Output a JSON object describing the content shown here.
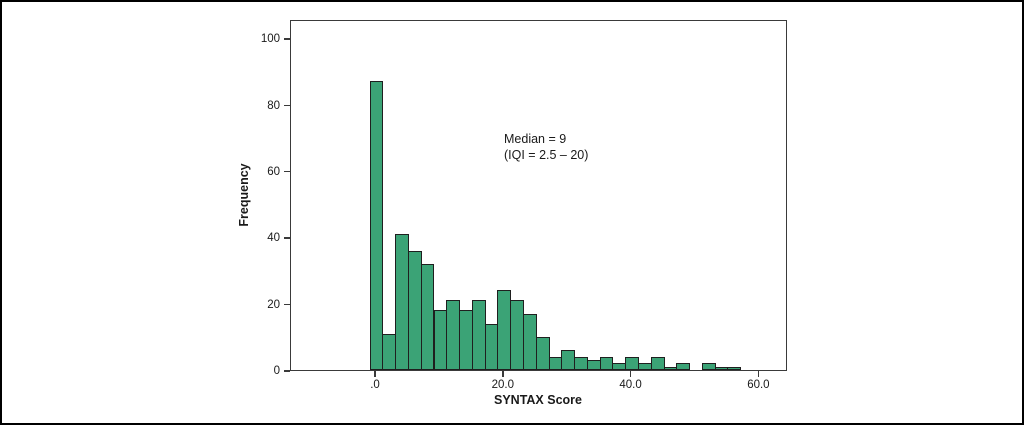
{
  "figure": {
    "background_color": "#ffffff",
    "border_color": "#000000"
  },
  "chart_data": {
    "type": "bar",
    "subtype": "histogram",
    "title": "",
    "xlabel": "SYNTAX Score",
    "ylabel": "Frequency",
    "bar_color": "#3ba376",
    "bar_edge_color": "#1f1f1f",
    "axis_color": "#3a3a3a",
    "bin_width": 2,
    "bin_centers": [
      0,
      2,
      4,
      6,
      8,
      10,
      12,
      14,
      16,
      18,
      20,
      22,
      24,
      26,
      28,
      30,
      32,
      34,
      36,
      38,
      40,
      42,
      44,
      46,
      48,
      50,
      52,
      54,
      56
    ],
    "frequencies": [
      87,
      11,
      41,
      36,
      32,
      18,
      21,
      18,
      21,
      14,
      24,
      21,
      17,
      10,
      4,
      6,
      4,
      3,
      4,
      2,
      4,
      2,
      4,
      1,
      2,
      0,
      2,
      1,
      1
    ],
    "x_ticks": [
      {
        "value": 0,
        "label": ".0"
      },
      {
        "value": 20,
        "label": "20.0"
      },
      {
        "value": 40,
        "label": "40.0"
      },
      {
        "value": 60,
        "label": "60.0"
      }
    ],
    "y_ticks": [
      {
        "value": 0,
        "label": "0"
      },
      {
        "value": 20,
        "label": "20"
      },
      {
        "value": 40,
        "label": "40"
      },
      {
        "value": 60,
        "label": "60"
      },
      {
        "value": 80,
        "label": "80"
      },
      {
        "value": 100,
        "label": "100"
      }
    ],
    "xlim": [
      -13.3,
      64.5
    ],
    "ylim": [
      0,
      105.8
    ],
    "grid": false,
    "legend": false,
    "annotation": {
      "line1": "Median = 9",
      "line2": "(IQI = 2.5 – 20)"
    }
  }
}
